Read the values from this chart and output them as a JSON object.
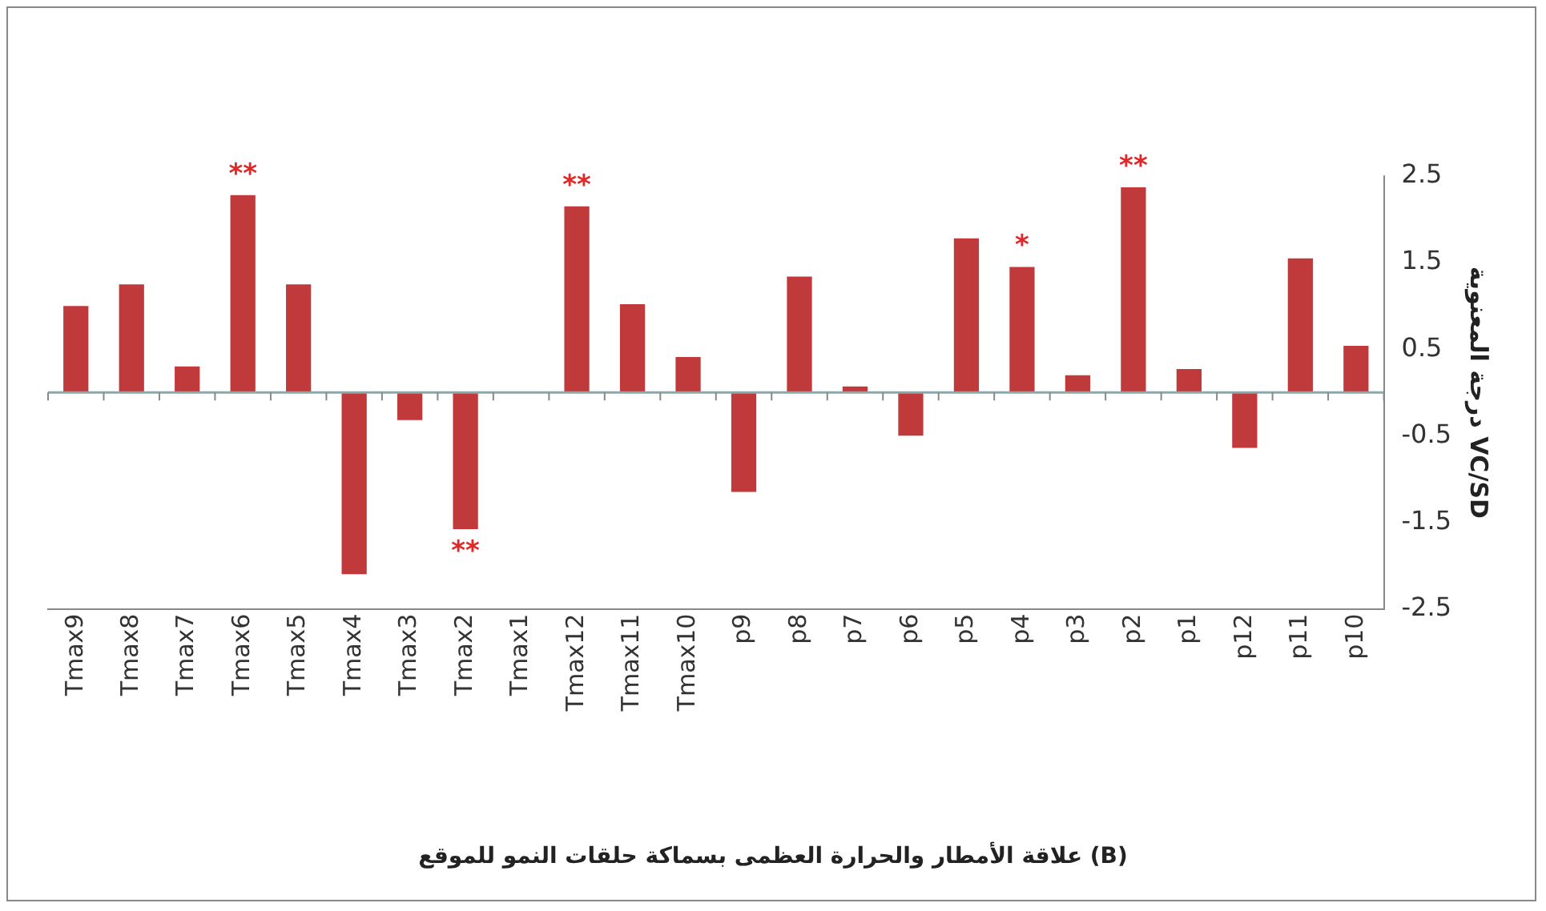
{
  "chart_data": {
    "type": "bar",
    "title": "علاقة الأمطار والحرارة العظمى بسماكة حلقات النمو للموقع (B)",
    "ylabel": "درجة المعنوية VC/SD",
    "categories": [
      "Tmax9",
      "Tmax8",
      "Tmax7",
      "Tmax6",
      "Tmax5",
      "Tmax4",
      "Tmax3",
      "Tmax2",
      "Tmax1",
      "Tmax12",
      "Tmax11",
      "Tmax10",
      "p9",
      "p8",
      "p7",
      "p6",
      "p5",
      "p4",
      "p3",
      "p2",
      "p1",
      "p12",
      "p11",
      "p10"
    ],
    "values": [
      1.0,
      1.25,
      0.3,
      2.28,
      1.25,
      -2.1,
      -0.32,
      -1.58,
      0,
      2.15,
      1.02,
      0.41,
      -1.15,
      1.34,
      0.07,
      -0.5,
      1.78,
      1.45,
      0.2,
      2.37,
      0.27,
      -0.64,
      1.55,
      0.54
    ],
    "color": "#c0393b",
    "ylim": [
      -2.5,
      2.5
    ],
    "yticks": [
      -2.5,
      -1.5,
      -0.5,
      0.5,
      1.5,
      2.5
    ],
    "grid": false,
    "legend": false,
    "annotations": [
      {
        "text": "**",
        "x": "Tmax6",
        "y": 2.28
      },
      {
        "text": "**",
        "x": "Tmax2",
        "y": -1.58
      },
      {
        "text": "**",
        "x": "Tmax12",
        "y": 2.15
      },
      {
        "text": "*",
        "x": "p4",
        "y": 1.45
      },
      {
        "text": "**",
        "x": "p2",
        "y": 2.37
      }
    ]
  }
}
